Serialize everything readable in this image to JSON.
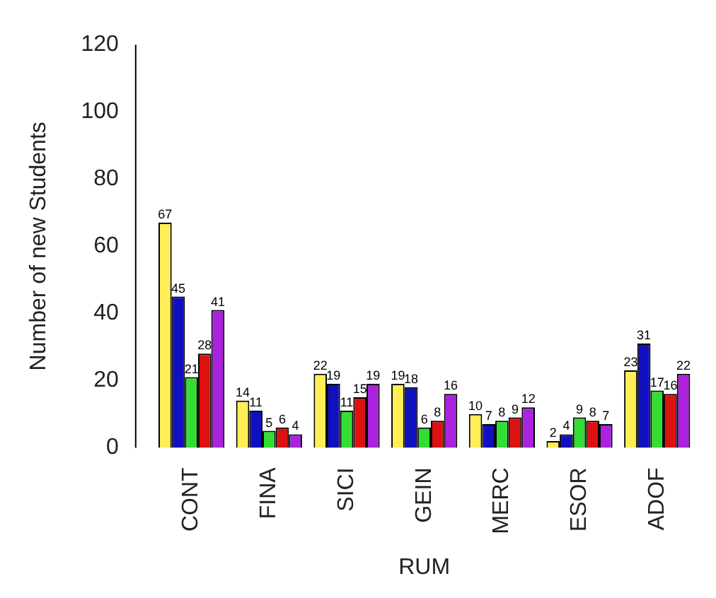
{
  "chart_data": {
    "type": "bar",
    "xlabel": "RUM",
    "ylabel": "Number of new Students",
    "categories": [
      "CONT",
      "FINA",
      "SICI",
      "GEIN",
      "MERC",
      "ESOR",
      "ADOF"
    ],
    "series": [
      {
        "color": "#ffee55",
        "values": [
          67,
          14,
          22,
          19,
          10,
          2,
          23
        ]
      },
      {
        "color": "#1010c0",
        "values": [
          45,
          11,
          19,
          18,
          7,
          4,
          31
        ]
      },
      {
        "color": "#33dd33",
        "values": [
          21,
          5,
          11,
          6,
          8,
          9,
          17
        ]
      },
      {
        "color": "#dd1111",
        "values": [
          28,
          6,
          15,
          8,
          9,
          8,
          16
        ]
      },
      {
        "color": "#aa22dd",
        "values": [
          41,
          4,
          19,
          16,
          12,
          7,
          22
        ]
      }
    ],
    "ylim": [
      0,
      120
    ],
    "yticks": [
      0,
      20,
      40,
      60,
      80,
      100,
      120
    ],
    "grid": false,
    "legend": false,
    "data_labels": true
  }
}
